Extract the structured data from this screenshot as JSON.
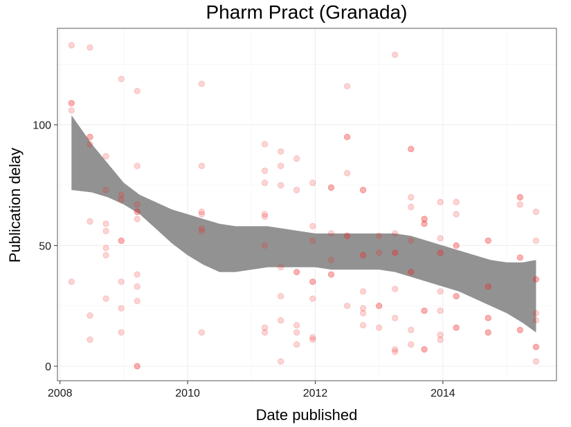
{
  "chart_data": {
    "type": "scatter",
    "title": "Pharm Pract (Granada)",
    "xlabel": "Date published",
    "ylabel": "Publication delay",
    "xlim": [
      2007.96,
      2015.78
    ],
    "ylim": [
      -6,
      140
    ],
    "x_ticks": [
      2008,
      2010,
      2012,
      2014
    ],
    "x_tick_labels": [
      "2008",
      "2010",
      "2012",
      "2014"
    ],
    "y_ticks": [
      0,
      50,
      100
    ],
    "y_tick_labels": [
      "0",
      "50",
      "100"
    ],
    "grid": true,
    "colors": {
      "points": "#ee2a2a",
      "smooth_band": "#8c8c8c",
      "panel_border": "#7f7f7f",
      "grid": "#ececec"
    },
    "points": [
      [
        2008.18,
        133
      ],
      [
        2008.18,
        109
      ],
      [
        2008.18,
        109
      ],
      [
        2008.18,
        106
      ],
      [
        2008.18,
        35
      ],
      [
        2008.47,
        132
      ],
      [
        2008.47,
        95
      ],
      [
        2008.47,
        95
      ],
      [
        2008.47,
        92
      ],
      [
        2008.47,
        60
      ],
      [
        2008.47,
        21
      ],
      [
        2008.47,
        11
      ],
      [
        2008.72,
        87
      ],
      [
        2008.72,
        73
      ],
      [
        2008.72,
        59
      ],
      [
        2008.72,
        56
      ],
      [
        2008.72,
        49
      ],
      [
        2008.72,
        46
      ],
      [
        2008.72,
        28
      ],
      [
        2008.96,
        119
      ],
      [
        2008.96,
        71
      ],
      [
        2008.96,
        69
      ],
      [
        2008.96,
        52
      ],
      [
        2008.96,
        52
      ],
      [
        2008.96,
        35
      ],
      [
        2008.96,
        24
      ],
      [
        2008.96,
        14
      ],
      [
        2009.21,
        114
      ],
      [
        2009.21,
        83
      ],
      [
        2009.21,
        67
      ],
      [
        2009.21,
        64
      ],
      [
        2009.21,
        64
      ],
      [
        2009.21,
        61
      ],
      [
        2009.21,
        38
      ],
      [
        2009.21,
        33
      ],
      [
        2009.21,
        27
      ],
      [
        2009.21,
        0
      ],
      [
        2009.21,
        0
      ],
      [
        2010.22,
        117
      ],
      [
        2010.22,
        83
      ],
      [
        2010.22,
        64
      ],
      [
        2010.22,
        63
      ],
      [
        2010.22,
        57
      ],
      [
        2010.22,
        56
      ],
      [
        2010.22,
        14
      ],
      [
        2011.21,
        92
      ],
      [
        2011.21,
        81
      ],
      [
        2011.21,
        76
      ],
      [
        2011.21,
        63
      ],
      [
        2011.21,
        62
      ],
      [
        2011.21,
        50
      ],
      [
        2011.21,
        16
      ],
      [
        2011.21,
        14
      ],
      [
        2011.46,
        89
      ],
      [
        2011.46,
        83
      ],
      [
        2011.46,
        75
      ],
      [
        2011.46,
        41
      ],
      [
        2011.46,
        29
      ],
      [
        2011.46,
        19
      ],
      [
        2011.46,
        2
      ],
      [
        2011.71,
        86
      ],
      [
        2011.71,
        73
      ],
      [
        2011.71,
        39
      ],
      [
        2011.71,
        39
      ],
      [
        2011.71,
        17
      ],
      [
        2011.71,
        14
      ],
      [
        2011.71,
        9
      ],
      [
        2011.96,
        76
      ],
      [
        2011.96,
        58
      ],
      [
        2011.96,
        52
      ],
      [
        2011.96,
        35
      ],
      [
        2011.96,
        35
      ],
      [
        2011.96,
        28
      ],
      [
        2011.96,
        12
      ],
      [
        2011.96,
        11
      ],
      [
        2012.25,
        74
      ],
      [
        2012.25,
        74
      ],
      [
        2012.25,
        55
      ],
      [
        2012.25,
        44
      ],
      [
        2012.25,
        38
      ],
      [
        2012.25,
        38
      ],
      [
        2012.5,
        116
      ],
      [
        2012.5,
        95
      ],
      [
        2012.5,
        95
      ],
      [
        2012.5,
        80
      ],
      [
        2012.5,
        54
      ],
      [
        2012.5,
        54
      ],
      [
        2012.5,
        25
      ],
      [
        2012.75,
        73
      ],
      [
        2012.75,
        73
      ],
      [
        2012.75,
        46
      ],
      [
        2012.75,
        46
      ],
      [
        2012.75,
        31
      ],
      [
        2012.75,
        24
      ],
      [
        2012.75,
        22
      ],
      [
        2012.75,
        17
      ],
      [
        2013.0,
        54
      ],
      [
        2013.0,
        47
      ],
      [
        2013.0,
        25
      ],
      [
        2013.0,
        25
      ],
      [
        2013.0,
        16
      ],
      [
        2013.25,
        129
      ],
      [
        2013.25,
        55
      ],
      [
        2013.25,
        47
      ],
      [
        2013.25,
        47
      ],
      [
        2013.25,
        32
      ],
      [
        2013.25,
        20
      ],
      [
        2013.25,
        7
      ],
      [
        2013.25,
        6
      ],
      [
        2013.5,
        90
      ],
      [
        2013.5,
        90
      ],
      [
        2013.5,
        70
      ],
      [
        2013.5,
        66
      ],
      [
        2013.5,
        52
      ],
      [
        2013.5,
        39
      ],
      [
        2013.5,
        39
      ],
      [
        2013.5,
        15
      ],
      [
        2013.5,
        9
      ],
      [
        2013.71,
        61
      ],
      [
        2013.71,
        61
      ],
      [
        2013.71,
        59
      ],
      [
        2013.71,
        59
      ],
      [
        2013.71,
        23
      ],
      [
        2013.71,
        23
      ],
      [
        2013.71,
        7
      ],
      [
        2013.71,
        7
      ],
      [
        2013.96,
        68
      ],
      [
        2013.96,
        53
      ],
      [
        2013.96,
        47
      ],
      [
        2013.96,
        47
      ],
      [
        2013.96,
        31
      ],
      [
        2013.96,
        23
      ],
      [
        2013.96,
        13
      ],
      [
        2013.96,
        11
      ],
      [
        2014.21,
        68
      ],
      [
        2014.21,
        63
      ],
      [
        2014.21,
        50
      ],
      [
        2014.21,
        50
      ],
      [
        2014.21,
        29
      ],
      [
        2014.21,
        29
      ],
      [
        2014.21,
        16
      ],
      [
        2014.21,
        16
      ],
      [
        2014.71,
        52
      ],
      [
        2014.71,
        52
      ],
      [
        2014.71,
        33
      ],
      [
        2014.71,
        33
      ],
      [
        2014.71,
        20
      ],
      [
        2014.71,
        20
      ],
      [
        2014.71,
        14
      ],
      [
        2014.71,
        14
      ],
      [
        2015.21,
        70
      ],
      [
        2015.21,
        70
      ],
      [
        2015.21,
        67
      ],
      [
        2015.21,
        45
      ],
      [
        2015.21,
        45
      ],
      [
        2015.21,
        15
      ],
      [
        2015.21,
        15
      ],
      [
        2015.46,
        64
      ],
      [
        2015.46,
        52
      ],
      [
        2015.46,
        36
      ],
      [
        2015.46,
        36
      ],
      [
        2015.46,
        22
      ],
      [
        2015.46,
        19
      ],
      [
        2015.46,
        8
      ],
      [
        2015.46,
        8
      ],
      [
        2015.46,
        2
      ]
    ],
    "smooth_band": {
      "x": [
        2008.18,
        2008.5,
        2008.75,
        2009.0,
        2009.25,
        2009.5,
        2009.75,
        2010.0,
        2010.25,
        2010.5,
        2010.75,
        2011.0,
        2011.25,
        2011.5,
        2011.75,
        2012.0,
        2012.25,
        2012.5,
        2012.75,
        2013.0,
        2013.25,
        2013.5,
        2013.75,
        2014.0,
        2014.25,
        2014.5,
        2014.75,
        2015.0,
        2015.25,
        2015.46
      ],
      "upper": [
        104,
        92,
        84,
        76,
        71,
        68,
        65,
        63,
        61,
        59,
        58,
        58,
        58,
        57,
        56,
        55,
        55,
        55,
        55,
        55,
        55,
        54,
        52,
        50,
        48,
        46,
        44,
        43,
        43,
        44
      ],
      "lower": [
        73,
        72,
        70,
        67,
        63,
        57,
        51,
        46,
        42,
        39,
        39,
        40,
        41,
        41,
        41,
        41,
        40,
        40,
        40,
        40,
        39,
        37,
        35,
        33,
        31,
        28,
        25,
        22,
        18,
        14
      ]
    }
  }
}
